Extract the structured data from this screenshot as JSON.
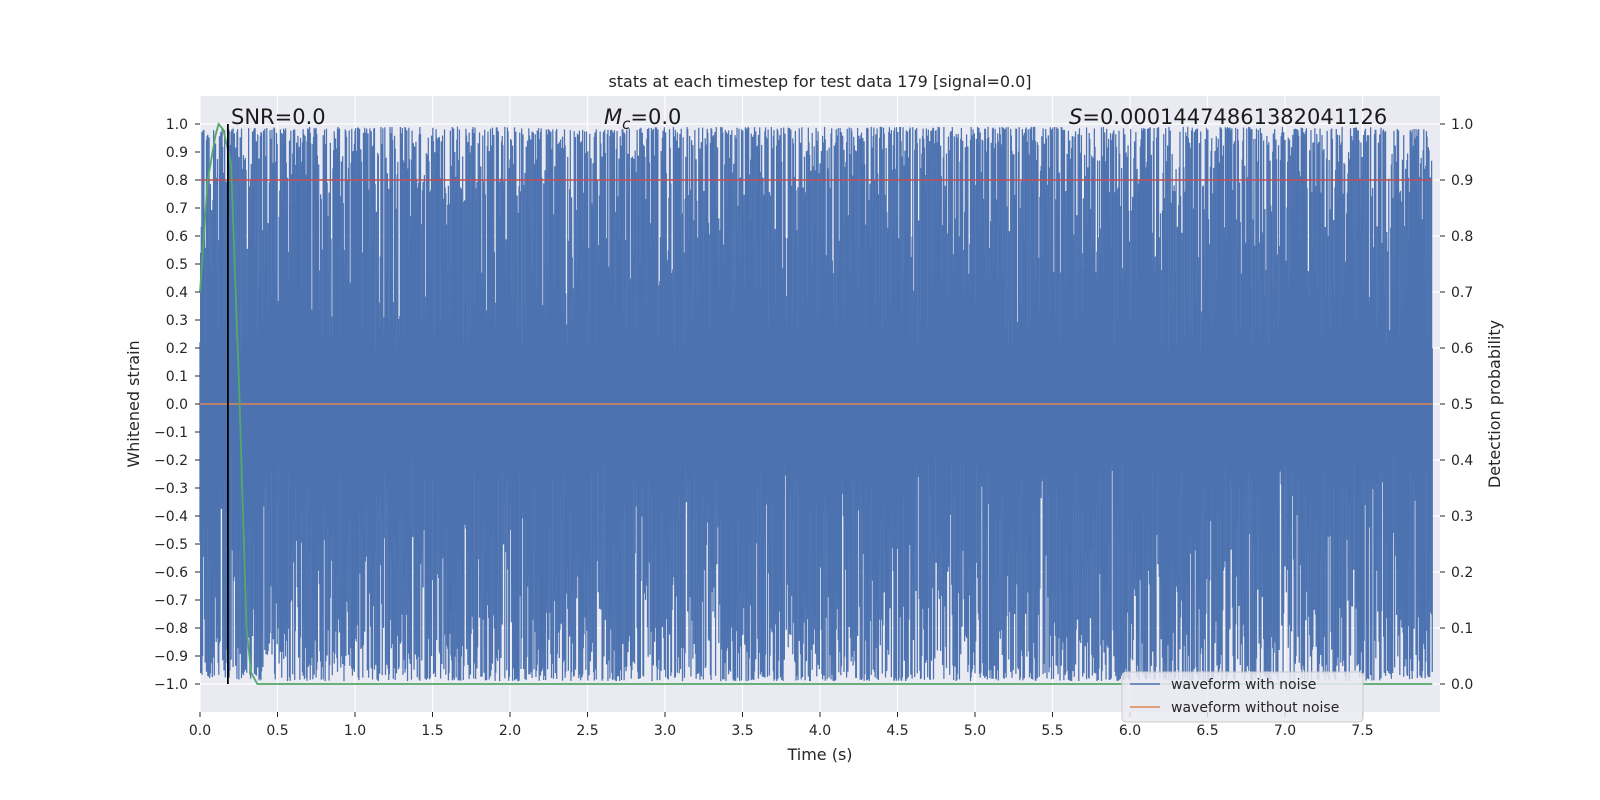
{
  "chart_data": {
    "type": "line",
    "title": "stats at each timestep for test data 179 [signal=0.0]",
    "xlabel": "Time (s)",
    "ylabel_left": "Whitened strain",
    "ylabel_right": "Detection probability",
    "xlim": [
      0.0,
      8.0
    ],
    "ylim_left": [
      -1.1,
      1.1
    ],
    "ylim_right": [
      -0.05,
      1.05
    ],
    "x_ticks": [
      0.0,
      0.5,
      1.0,
      1.5,
      2.0,
      2.5,
      3.0,
      3.5,
      4.0,
      4.5,
      5.0,
      5.5,
      6.0,
      6.5,
      7.0,
      7.5
    ],
    "x_tick_labels": [
      "0.0",
      "0.5",
      "1.0",
      "1.5",
      "2.0",
      "2.5",
      "3.0",
      "3.5",
      "4.0",
      "4.5",
      "5.0",
      "5.5",
      "6.0",
      "6.5",
      "7.0",
      "7.5"
    ],
    "y_left_ticks": [
      1.0,
      0.9,
      0.8,
      0.7,
      0.6,
      0.5,
      0.4,
      0.3,
      0.2,
      0.1,
      0.0,
      -0.1,
      -0.2,
      -0.3,
      -0.4,
      -0.5,
      -0.6,
      -0.7,
      -0.8,
      -0.9,
      -1.0
    ],
    "y_left_tick_labels": [
      "1.0",
      "0.9",
      "0.8",
      "0.7",
      "0.6",
      "0.5",
      "0.4",
      "0.3",
      "0.2",
      "0.1",
      "0.0",
      "−0.1",
      "−0.2",
      "−0.3",
      "−0.4",
      "−0.5",
      "−0.6",
      "−0.7",
      "−0.8",
      "−0.9",
      "−1.0"
    ],
    "y_right_ticks": [
      1.0,
      0.9,
      0.8,
      0.7,
      0.6,
      0.5,
      0.4,
      0.3,
      0.2,
      0.1,
      0.0
    ],
    "y_right_tick_labels": [
      "1.0",
      "0.9",
      "0.8",
      "0.7",
      "0.6",
      "0.5",
      "0.4",
      "0.3",
      "0.2",
      "0.1",
      "0.0"
    ],
    "grid": true,
    "annotations": {
      "snr": "SNR=0.0",
      "mc_symbol": "M",
      "mc_sub": "c",
      "mc_value": "=0.0",
      "s_symbol": "S",
      "s_value": "=0.00014474861382041126"
    },
    "marker_x": 0.18,
    "threshold_probability": 0.9,
    "series": [
      {
        "name": "waveform with noise",
        "axis": "left",
        "color": "#4c72b0",
        "envelope": {
          "x": [
            0.0,
            0.5,
            1.0,
            1.5,
            2.0,
            2.5,
            3.0,
            3.5,
            4.0,
            4.5,
            5.0,
            5.5,
            6.0,
            6.5,
            7.0,
            7.5,
            7.95
          ],
          "upper": [
            0.98,
            0.99,
            0.99,
            0.99,
            0.99,
            0.98,
            0.99,
            0.99,
            0.99,
            0.99,
            0.99,
            0.99,
            0.99,
            0.99,
            0.99,
            0.99,
            0.98
          ],
          "lower": [
            -0.98,
            -0.99,
            -0.99,
            -0.99,
            -0.99,
            -0.99,
            -0.99,
            -0.99,
            -0.99,
            -0.99,
            -0.99,
            -0.99,
            -0.99,
            -0.99,
            -0.99,
            -0.99,
            -0.98
          ]
        }
      },
      {
        "name": "waveform without noise",
        "axis": "left",
        "color": "#dd8452",
        "x": [
          0.0,
          7.95
        ],
        "y": [
          0.0,
          0.0
        ]
      },
      {
        "axis": "right",
        "color": "#55a868",
        "x": [
          0.0,
          0.05,
          0.1,
          0.12,
          0.15,
          0.2,
          0.25,
          0.3,
          0.33,
          0.37,
          0.5,
          1.0,
          7.95
        ],
        "y": [
          0.7,
          0.9,
          0.98,
          1.0,
          0.99,
          0.93,
          0.55,
          0.1,
          0.02,
          0.0,
          0.0,
          0.0,
          0.0
        ]
      }
    ],
    "legend": {
      "placement": "lower-right",
      "entries": [
        "waveform with noise",
        "waveform without noise"
      ]
    },
    "colors": {
      "background": "#eaeaf2",
      "grid": "#ffffff",
      "noise": "#4c72b0",
      "clean": "#dd8452",
      "probability": "#55a868",
      "threshold": "#c44e52",
      "marker": "#000000"
    }
  }
}
